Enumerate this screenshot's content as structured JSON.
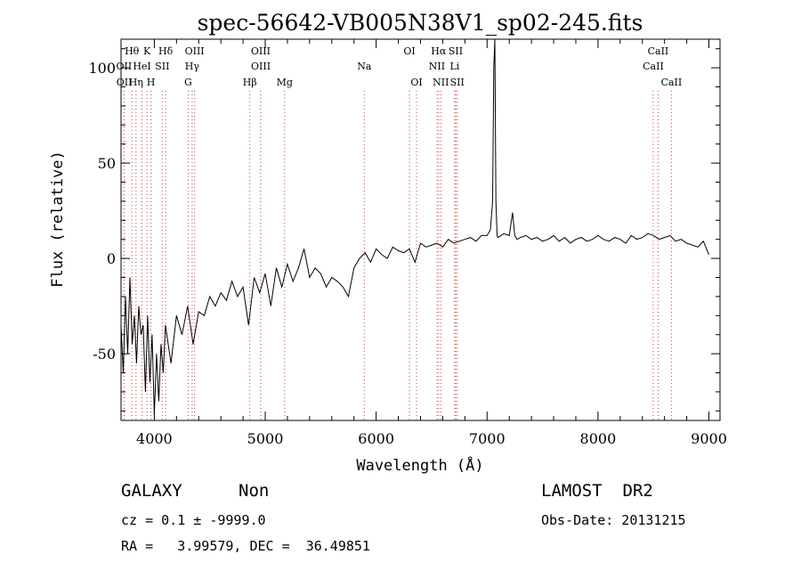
{
  "chart_data": {
    "type": "line",
    "title": "spec-56642-VB005N38V1_sp02-245.fits",
    "xlabel": "Wavelength (Å)",
    "ylabel": "Flux (relative)",
    "xlim": [
      3700,
      9100
    ],
    "ylim": [
      -85,
      115
    ],
    "x_ticks": [
      4000,
      5000,
      6000,
      7000,
      8000,
      9000
    ],
    "y_ticks": [
      -50,
      0,
      50,
      100
    ],
    "grid": false,
    "series": [
      {
        "x": [
          3700,
          3720,
          3740,
          3760,
          3780,
          3800,
          3820,
          3840,
          3860,
          3880,
          3900,
          3920,
          3940,
          3960,
          3980,
          4000,
          4020,
          4040,
          4060,
          4080,
          4100,
          4150,
          4200,
          4250,
          4300,
          4350,
          4400,
          4450,
          4500,
          4550,
          4600,
          4650,
          4700,
          4750,
          4800,
          4850,
          4900,
          4950,
          5000,
          5050,
          5100,
          5150,
          5200,
          5250,
          5300,
          5350,
          5400,
          5450,
          5500,
          5550,
          5600,
          5650,
          5700,
          5750,
          5800,
          5850,
          5900,
          5950,
          6000,
          6050,
          6100,
          6150,
          6200,
          6250,
          6300,
          6350,
          6400,
          6450,
          6500,
          6550,
          6600,
          6650,
          6700,
          6750,
          6800,
          6850,
          6900,
          6950,
          7000,
          7030,
          7050,
          7060,
          7070,
          7080,
          7090,
          7100,
          7150,
          7200,
          7230,
          7250,
          7270,
          7300,
          7350,
          7400,
          7450,
          7500,
          7550,
          7600,
          7650,
          7700,
          7750,
          7800,
          7850,
          7900,
          7950,
          8000,
          8050,
          8100,
          8150,
          8200,
          8250,
          8300,
          8350,
          8400,
          8450,
          8500,
          8550,
          8600,
          8650,
          8700,
          8750,
          8800,
          8850,
          8900,
          8950,
          9000
        ],
        "y": [
          -35,
          -60,
          -20,
          -50,
          -10,
          -45,
          -30,
          -55,
          -25,
          -40,
          -35,
          -70,
          -30,
          -65,
          -40,
          -82,
          -50,
          -75,
          -45,
          -60,
          -35,
          -55,
          -30,
          -40,
          -25,
          -45,
          -28,
          -30,
          -20,
          -25,
          -18,
          -22,
          -12,
          -20,
          -15,
          -35,
          -10,
          -18,
          -8,
          -25,
          -5,
          -15,
          -3,
          -12,
          -5,
          5,
          -10,
          -5,
          -8,
          -15,
          -10,
          -12,
          -15,
          -20,
          -5,
          0,
          3,
          -2,
          5,
          2,
          0,
          6,
          4,
          3,
          5,
          -2,
          8,
          6,
          7,
          8,
          6,
          10,
          8,
          9,
          10,
          11,
          9,
          12,
          12,
          15,
          30,
          100,
          115,
          30,
          12,
          11,
          13,
          12,
          24,
          12,
          10,
          11,
          12,
          10,
          11,
          9,
          10,
          12,
          9,
          11,
          8,
          10,
          11,
          9,
          10,
          12,
          10,
          9,
          11,
          10,
          8,
          12,
          10,
          11,
          13,
          12,
          10,
          11,
          12,
          9,
          10,
          8,
          7,
          6,
          9,
          2
        ]
      }
    ],
    "lines": [
      {
        "label": "Hθ",
        "x": 3798,
        "row": 1
      },
      {
        "label": "OII",
        "x": 3727,
        "row": 2
      },
      {
        "label": "OII",
        "x": 3729,
        "row": 3
      },
      {
        "label": "Hη",
        "x": 3835,
        "row": 3
      },
      {
        "label": "K",
        "x": 3934,
        "row": 1
      },
      {
        "label": "HeI",
        "x": 3889,
        "row": 2
      },
      {
        "label": "H",
        "x": 3969,
        "row": 3
      },
      {
        "label": "SII",
        "x": 4072,
        "row": 2
      },
      {
        "label": "Hδ",
        "x": 4102,
        "row": 1
      },
      {
        "label": "OIII",
        "x": 4363,
        "row": 1
      },
      {
        "label": "Hγ",
        "x": 4341,
        "row": 2
      },
      {
        "label": "G",
        "x": 4305,
        "row": 3
      },
      {
        "label": "OIII",
        "x": 4959,
        "row": 1
      },
      {
        "label": "OIII",
        "x": 4960,
        "row": 2
      },
      {
        "label": "Hβ",
        "x": 4861,
        "row": 3
      },
      {
        "label": "Mg",
        "x": 5175,
        "row": 3
      },
      {
        "label": "Na",
        "x": 5893,
        "row": 2
      },
      {
        "label": "OI",
        "x": 6300,
        "row": 1
      },
      {
        "label": "OI",
        "x": 6364,
        "row": 3
      },
      {
        "label": "Hα",
        "x": 6563,
        "row": 1
      },
      {
        "label": "SII",
        "x": 6717,
        "row": 1
      },
      {
        "label": "NII",
        "x": 6548,
        "row": 2
      },
      {
        "label": "Li",
        "x": 6708,
        "row": 2
      },
      {
        "label": "NII",
        "x": 6583,
        "row": 3
      },
      {
        "label": "SII",
        "x": 6731,
        "row": 3
      },
      {
        "label": "CaII",
        "x": 8542,
        "row": 1
      },
      {
        "label": "CaII",
        "x": 8498,
        "row": 2
      },
      {
        "label": "CaII",
        "x": 8662,
        "row": 3
      }
    ]
  },
  "footer": {
    "class_label": "GALAXY",
    "subclass": "Non",
    "survey": "LAMOST  DR2",
    "cz_line": "cz = 0.1 ± -9999.0",
    "obs_date": "Obs-Date: 20131215",
    "radec_line": "RA =   3.99579, DEC =  36.49851"
  }
}
